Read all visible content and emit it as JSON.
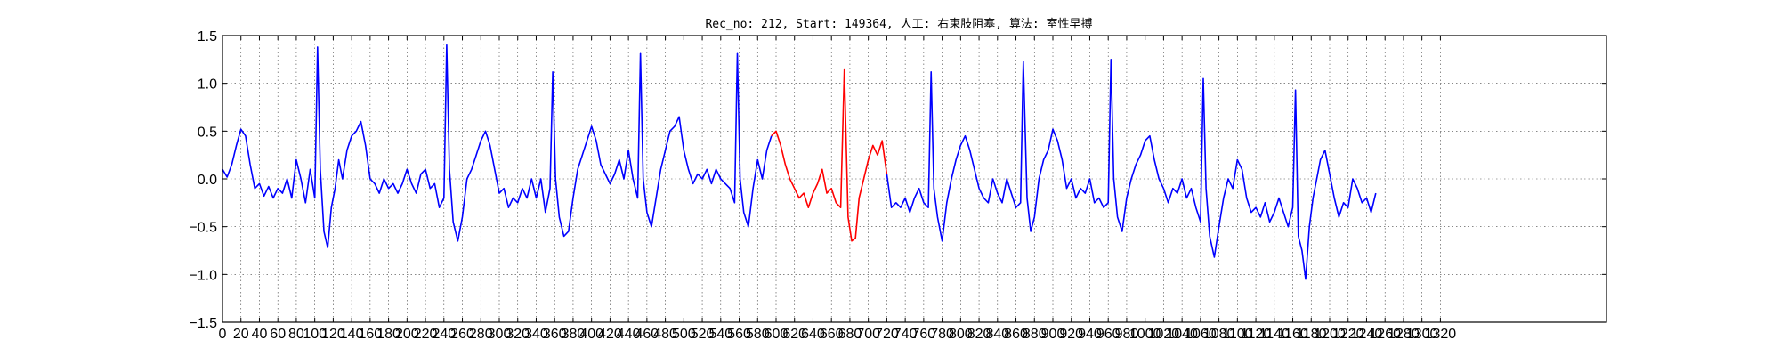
{
  "chart_data": {
    "type": "line",
    "title": "Rec_no: 212, Start: 149364, 人工: 右束肢阻塞, 算法: 室性早搏",
    "xlabel": "",
    "ylabel": "",
    "xlim": [
      0,
      1500
    ],
    "ylim": [
      -1.5,
      1.5
    ],
    "yticks": [
      -1.5,
      -1.0,
      -0.5,
      0.0,
      0.5,
      1.0,
      1.5
    ],
    "ytick_labels": [
      "−1.5",
      "−1.0",
      "−0.5",
      "0.0",
      "0.5",
      "1.0",
      "1.5"
    ],
    "xtick_step": 20,
    "xticks_shown_through": 1320,
    "grid": true,
    "line_colors": {
      "normal": "#0000ff",
      "highlight": "#ff0000"
    },
    "highlight_range": [
      600,
      720
    ],
    "series": [
      {
        "values": [
          [
            0,
            0.1
          ],
          [
            5,
            0.02
          ],
          [
            10,
            0.15
          ],
          [
            15,
            0.35
          ],
          [
            20,
            0.52
          ],
          [
            25,
            0.45
          ],
          [
            30,
            0.15
          ],
          [
            35,
            -0.1
          ],
          [
            40,
            -0.05
          ],
          [
            45,
            -0.18
          ],
          [
            50,
            -0.08
          ],
          [
            55,
            -0.2
          ],
          [
            60,
            -0.1
          ],
          [
            65,
            -0.15
          ],
          [
            70,
            0.0
          ],
          [
            75,
            -0.2
          ],
          [
            80,
            0.2
          ],
          [
            85,
            0.0
          ],
          [
            90,
            -0.25
          ],
          [
            95,
            0.1
          ],
          [
            100,
            -0.2
          ],
          [
            103,
            1.38
          ],
          [
            106,
            0.1
          ],
          [
            110,
            -0.55
          ],
          [
            114,
            -0.72
          ],
          [
            118,
            -0.3
          ],
          [
            122,
            -0.1
          ],
          [
            126,
            0.2
          ],
          [
            130,
            0.0
          ],
          [
            135,
            0.3
          ],
          [
            140,
            0.45
          ],
          [
            145,
            0.5
          ],
          [
            150,
            0.6
          ],
          [
            155,
            0.35
          ],
          [
            160,
            0.0
          ],
          [
            165,
            -0.05
          ],
          [
            170,
            -0.15
          ],
          [
            175,
            0.0
          ],
          [
            180,
            -0.1
          ],
          [
            185,
            -0.05
          ],
          [
            190,
            -0.15
          ],
          [
            195,
            -0.05
          ],
          [
            200,
            0.1
          ],
          [
            205,
            -0.05
          ],
          [
            210,
            -0.15
          ],
          [
            215,
            0.05
          ],
          [
            220,
            0.1
          ],
          [
            225,
            -0.1
          ],
          [
            230,
            -0.05
          ],
          [
            235,
            -0.3
          ],
          [
            240,
            -0.2
          ],
          [
            243,
            1.4
          ],
          [
            246,
            0.1
          ],
          [
            250,
            -0.45
          ],
          [
            255,
            -0.65
          ],
          [
            260,
            -0.4
          ],
          [
            265,
            0.0
          ],
          [
            270,
            0.1
          ],
          [
            275,
            0.25
          ],
          [
            280,
            0.4
          ],
          [
            285,
            0.5
          ],
          [
            290,
            0.35
          ],
          [
            295,
            0.1
          ],
          [
            300,
            -0.15
          ],
          [
            305,
            -0.1
          ],
          [
            310,
            -0.3
          ],
          [
            315,
            -0.2
          ],
          [
            320,
            -0.25
          ],
          [
            325,
            -0.1
          ],
          [
            330,
            -0.2
          ],
          [
            335,
            0.0
          ],
          [
            340,
            -0.2
          ],
          [
            345,
            0.0
          ],
          [
            350,
            -0.35
          ],
          [
            355,
            -0.1
          ],
          [
            358,
            1.12
          ],
          [
            361,
            0.0
          ],
          [
            365,
            -0.4
          ],
          [
            370,
            -0.6
          ],
          [
            375,
            -0.55
          ],
          [
            380,
            -0.2
          ],
          [
            385,
            0.1
          ],
          [
            390,
            0.25
          ],
          [
            395,
            0.4
          ],
          [
            400,
            0.55
          ],
          [
            405,
            0.4
          ],
          [
            410,
            0.15
          ],
          [
            415,
            0.05
          ],
          [
            420,
            -0.05
          ],
          [
            425,
            0.05
          ],
          [
            430,
            0.2
          ],
          [
            435,
            0.0
          ],
          [
            440,
            0.3
          ],
          [
            445,
            0.0
          ],
          [
            450,
            -0.2
          ],
          [
            453,
            1.32
          ],
          [
            456,
            0.0
          ],
          [
            460,
            -0.35
          ],
          [
            465,
            -0.5
          ],
          [
            470,
            -0.2
          ],
          [
            475,
            0.1
          ],
          [
            480,
            0.3
          ],
          [
            485,
            0.5
          ],
          [
            490,
            0.55
          ],
          [
            495,
            0.65
          ],
          [
            500,
            0.3
          ],
          [
            505,
            0.1
          ],
          [
            510,
            -0.05
          ],
          [
            515,
            0.05
          ],
          [
            520,
            0.0
          ],
          [
            525,
            0.1
          ],
          [
            530,
            -0.05
          ],
          [
            535,
            0.1
          ],
          [
            540,
            0.0
          ],
          [
            545,
            -0.05
          ],
          [
            550,
            -0.1
          ],
          [
            555,
            -0.25
          ],
          [
            558,
            1.32
          ],
          [
            561,
            0.0
          ],
          [
            565,
            -0.35
          ],
          [
            570,
            -0.5
          ],
          [
            575,
            -0.1
          ],
          [
            580,
            0.2
          ],
          [
            585,
            0.0
          ],
          [
            590,
            0.3
          ],
          [
            595,
            0.45
          ],
          [
            600,
            0.5
          ],
          [
            605,
            0.35
          ],
          [
            610,
            0.15
          ],
          [
            615,
            0.0
          ],
          [
            620,
            -0.1
          ],
          [
            625,
            -0.2
          ],
          [
            630,
            -0.15
          ],
          [
            635,
            -0.3
          ],
          [
            640,
            -0.15
          ],
          [
            645,
            -0.05
          ],
          [
            650,
            0.1
          ],
          [
            655,
            -0.15
          ],
          [
            660,
            -0.1
          ],
          [
            665,
            -0.25
          ],
          [
            670,
            -0.3
          ],
          [
            674,
            1.15
          ],
          [
            678,
            -0.4
          ],
          [
            682,
            -0.65
          ],
          [
            686,
            -0.62
          ],
          [
            690,
            -0.2
          ],
          [
            695,
            0.0
          ],
          [
            700,
            0.2
          ],
          [
            705,
            0.35
          ],
          [
            710,
            0.25
          ],
          [
            715,
            0.4
          ],
          [
            720,
            0.05
          ],
          [
            725,
            -0.3
          ],
          [
            730,
            -0.25
          ],
          [
            735,
            -0.3
          ],
          [
            740,
            -0.2
          ],
          [
            745,
            -0.35
          ],
          [
            750,
            -0.2
          ],
          [
            755,
            -0.1
          ],
          [
            760,
            -0.25
          ],
          [
            765,
            -0.3
          ],
          [
            768,
            1.12
          ],
          [
            771,
            -0.1
          ],
          [
            775,
            -0.4
          ],
          [
            780,
            -0.65
          ],
          [
            785,
            -0.25
          ],
          [
            790,
            0.0
          ],
          [
            795,
            0.2
          ],
          [
            800,
            0.35
          ],
          [
            805,
            0.45
          ],
          [
            810,
            0.3
          ],
          [
            815,
            0.1
          ],
          [
            820,
            -0.1
          ],
          [
            825,
            -0.2
          ],
          [
            830,
            -0.25
          ],
          [
            835,
            0.0
          ],
          [
            840,
            -0.15
          ],
          [
            845,
            -0.25
          ],
          [
            850,
            0.0
          ],
          [
            855,
            -0.15
          ],
          [
            860,
            -0.3
          ],
          [
            865,
            -0.25
          ],
          [
            868,
            1.23
          ],
          [
            872,
            -0.2
          ],
          [
            876,
            -0.55
          ],
          [
            880,
            -0.4
          ],
          [
            885,
            0.0
          ],
          [
            890,
            0.2
          ],
          [
            895,
            0.3
          ],
          [
            900,
            0.52
          ],
          [
            905,
            0.4
          ],
          [
            910,
            0.2
          ],
          [
            915,
            -0.1
          ],
          [
            920,
            0.0
          ],
          [
            925,
            -0.2
          ],
          [
            930,
            -0.1
          ],
          [
            935,
            -0.15
          ],
          [
            940,
            0.0
          ],
          [
            945,
            -0.25
          ],
          [
            950,
            -0.2
          ],
          [
            955,
            -0.3
          ],
          [
            960,
            -0.25
          ],
          [
            963,
            1.25
          ],
          [
            966,
            0.0
          ],
          [
            970,
            -0.4
          ],
          [
            975,
            -0.55
          ],
          [
            980,
            -0.2
          ],
          [
            985,
            0.0
          ],
          [
            990,
            0.15
          ],
          [
            995,
            0.25
          ],
          [
            1000,
            0.4
          ],
          [
            1005,
            0.45
          ],
          [
            1010,
            0.2
          ],
          [
            1015,
            0.0
          ],
          [
            1020,
            -0.1
          ],
          [
            1025,
            -0.25
          ],
          [
            1030,
            -0.1
          ],
          [
            1035,
            -0.15
          ],
          [
            1040,
            0.0
          ],
          [
            1045,
            -0.2
          ],
          [
            1050,
            -0.1
          ],
          [
            1055,
            -0.3
          ],
          [
            1060,
            -0.45
          ],
          [
            1063,
            1.05
          ],
          [
            1066,
            -0.1
          ],
          [
            1070,
            -0.6
          ],
          [
            1075,
            -0.82
          ],
          [
            1080,
            -0.5
          ],
          [
            1085,
            -0.2
          ],
          [
            1090,
            0.0
          ],
          [
            1095,
            -0.1
          ],
          [
            1100,
            0.2
          ],
          [
            1105,
            0.1
          ],
          [
            1110,
            -0.2
          ],
          [
            1115,
            -0.35
          ],
          [
            1120,
            -0.3
          ],
          [
            1125,
            -0.4
          ],
          [
            1130,
            -0.25
          ],
          [
            1135,
            -0.45
          ],
          [
            1140,
            -0.35
          ],
          [
            1145,
            -0.2
          ],
          [
            1150,
            -0.35
          ],
          [
            1155,
            -0.5
          ],
          [
            1160,
            -0.3
          ],
          [
            1163,
            0.93
          ],
          [
            1166,
            -0.6
          ],
          [
            1170,
            -0.75
          ],
          [
            1174,
            -1.05
          ],
          [
            1178,
            -0.5
          ],
          [
            1182,
            -0.2
          ],
          [
            1186,
            0.0
          ],
          [
            1190,
            0.2
          ],
          [
            1195,
            0.3
          ],
          [
            1200,
            0.05
          ],
          [
            1205,
            -0.2
          ],
          [
            1210,
            -0.4
          ],
          [
            1215,
            -0.25
          ],
          [
            1220,
            -0.3
          ],
          [
            1225,
            0.0
          ],
          [
            1230,
            -0.1
          ],
          [
            1235,
            -0.25
          ],
          [
            1240,
            -0.2
          ],
          [
            1245,
            -0.35
          ],
          [
            1250,
            -0.15
          ]
        ]
      }
    ]
  }
}
